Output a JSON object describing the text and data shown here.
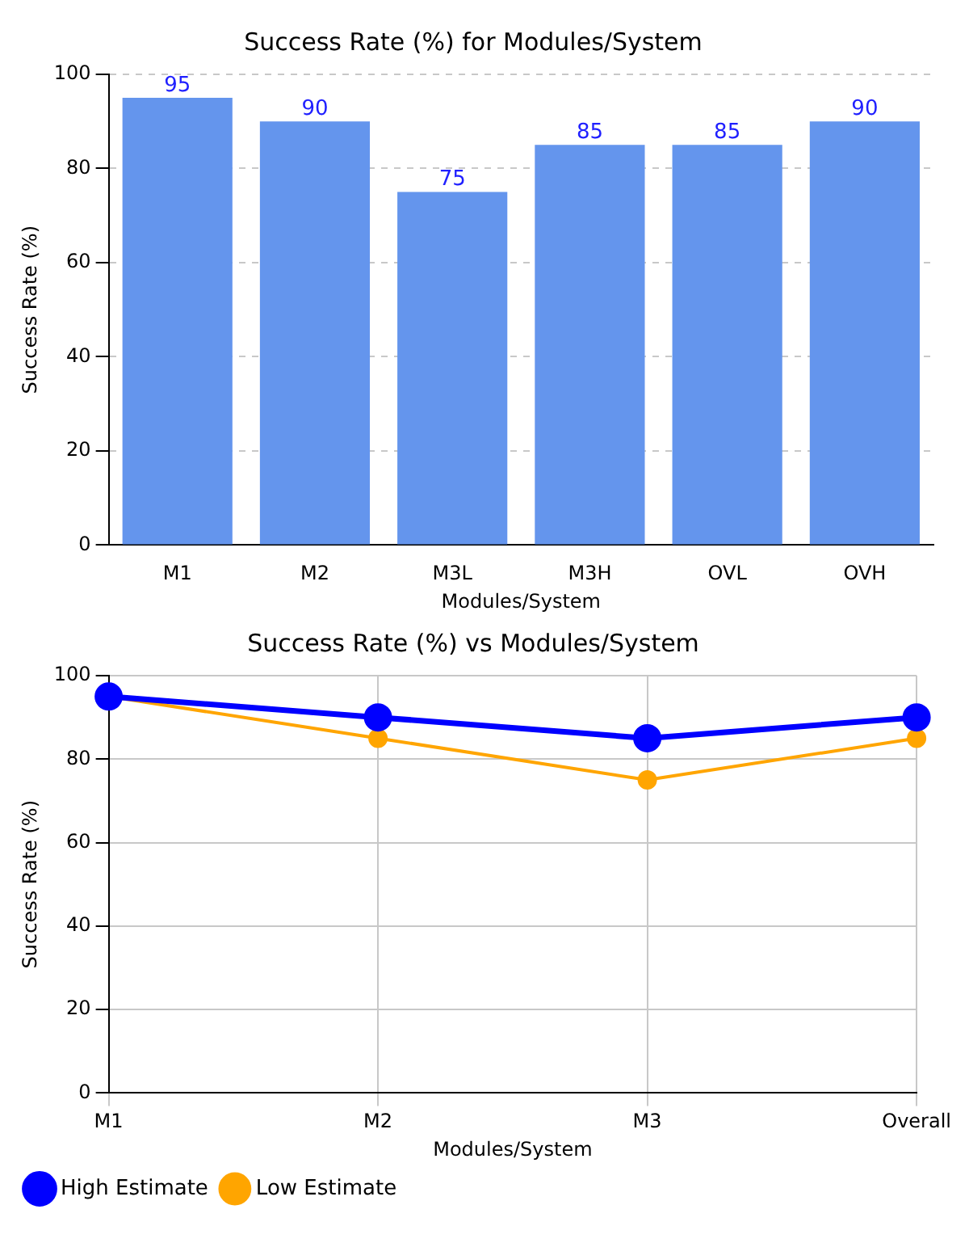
{
  "chart_data": [
    {
      "type": "bar",
      "title": "Success Rate (%) for Modules/System",
      "xlabel": "Modules/System",
      "ylabel": "Success Rate (%)",
      "categories": [
        "M1",
        "M2",
        "M3L",
        "M3H",
        "OVL",
        "OVH"
      ],
      "values": [
        95,
        90,
        75,
        85,
        85,
        90
      ],
      "color": "#6495ed",
      "ylim": [
        0,
        100
      ],
      "yticks": [
        0,
        20,
        40,
        60,
        80,
        100
      ],
      "grid": "y",
      "data_labels": true
    },
    {
      "type": "line",
      "title": "Success Rate (%) vs Modules/System",
      "xlabel": "Modules/System",
      "ylabel": "Success Rate (%)",
      "categories": [
        "M1",
        "M2",
        "M3",
        "Overall"
      ],
      "series": [
        {
          "name": "High Estimate",
          "color": "#0000ff",
          "values": [
            95,
            90,
            85,
            90
          ]
        },
        {
          "name": "Low Estimate",
          "color": "#ffa500",
          "values": [
            95,
            85,
            75,
            85
          ]
        }
      ],
      "ylim": [
        0,
        100
      ],
      "yticks": [
        0,
        20,
        40,
        60,
        80,
        100
      ],
      "grid": true,
      "legend": "bottom left",
      "marker": "circle"
    }
  ]
}
